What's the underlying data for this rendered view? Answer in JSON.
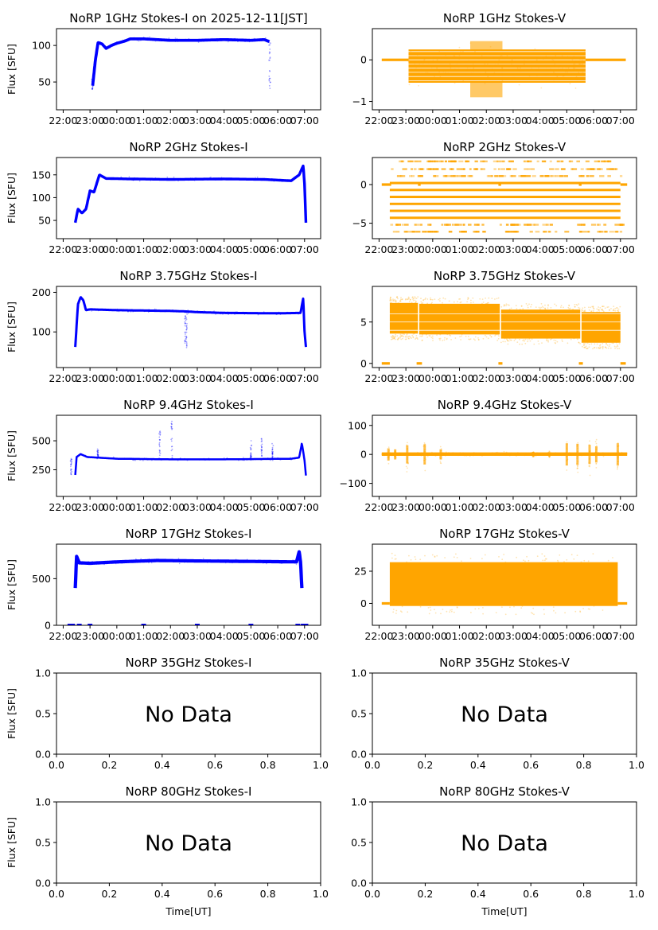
{
  "figure": {
    "xlabel_bottom": "Time[UT]",
    "colors": {
      "stokes_i": "#0000ff",
      "stokes_v": "#ffa500",
      "axes": "#000000"
    }
  },
  "chart_data": [
    {
      "type": "scatter",
      "id": "1ghz-i",
      "title": "NoRP 1GHz Stokes-I on 2025-12-11[JST]",
      "ylabel": "Flux [SFU]",
      "stokes": "I",
      "has_data": true,
      "xlim_hours": [
        21.75,
        31.6
      ],
      "ylim": [
        12,
        123
      ],
      "xticks": [
        "22:00",
        "23:00",
        "00:00",
        "01:00",
        "02:00",
        "03:00",
        "04:00",
        "05:00",
        "06:00",
        "07:00"
      ],
      "xtick_hours": [
        22,
        23,
        24,
        25,
        26,
        27,
        28,
        29,
        30,
        31
      ],
      "yticks": [
        50,
        100
      ],
      "profile": [
        [
          23.1,
          45
        ],
        [
          23.2,
          80
        ],
        [
          23.3,
          104
        ],
        [
          23.45,
          102
        ],
        [
          23.6,
          96
        ],
        [
          23.8,
          100
        ],
        [
          24.0,
          103
        ],
        [
          24.3,
          106
        ],
        [
          24.5,
          109
        ],
        [
          25.0,
          109
        ],
        [
          26.0,
          107
        ],
        [
          27.0,
          107
        ],
        [
          28.0,
          108
        ],
        [
          29.0,
          107
        ],
        [
          29.5,
          108
        ],
        [
          29.7,
          105
        ]
      ],
      "noise": 2,
      "spikes": [
        [
          23.1,
          40,
          55
        ],
        [
          29.7,
          40,
          105
        ]
      ]
    },
    {
      "type": "scatter",
      "id": "1ghz-v",
      "title": "NoRP 1GHz Stokes-V",
      "ylabel": "",
      "stokes": "V",
      "has_data": true,
      "xlim_hours": [
        21.75,
        31.6
      ],
      "ylim": [
        -1.2,
        0.75
      ],
      "xticks": [
        "22:00",
        "23:00",
        "00:00",
        "01:00",
        "02:00",
        "03:00",
        "04:00",
        "05:00",
        "06:00",
        "07:00"
      ],
      "xtick_hours": [
        22,
        23,
        24,
        25,
        26,
        27,
        28,
        29,
        30,
        31
      ],
      "yticks": [
        0,
        -1
      ],
      "band": {
        "start": 23.1,
        "end": 29.7,
        "lo": -0.55,
        "hi": 0.25,
        "bulge_center": 26.0,
        "bulge_width": 0.6,
        "bulge_lo": -0.9,
        "bulge_hi": 0.45
      },
      "flat_segments": [
        [
          22.1,
          23.1,
          0
        ],
        [
          29.7,
          31.2,
          0
        ]
      ]
    },
    {
      "type": "scatter",
      "id": "2ghz-i",
      "title": "NoRP 2GHz Stokes-I",
      "ylabel": "Flux [SFU]",
      "stokes": "I",
      "has_data": true,
      "xlim_hours": [
        21.75,
        31.6
      ],
      "ylim": [
        10,
        188
      ],
      "xticks": [
        "22:00",
        "23:00",
        "00:00",
        "01:00",
        "02:00",
        "03:00",
        "04:00",
        "05:00",
        "06:00",
        "07:00"
      ],
      "xtick_hours": [
        22,
        23,
        24,
        25,
        26,
        27,
        28,
        29,
        30,
        31
      ],
      "yticks": [
        50,
        100,
        150
      ],
      "profile": [
        [
          22.45,
          45
        ],
        [
          22.55,
          75
        ],
        [
          22.7,
          66
        ],
        [
          22.85,
          75
        ],
        [
          23.0,
          115
        ],
        [
          23.15,
          112
        ],
        [
          23.35,
          150
        ],
        [
          23.6,
          142
        ],
        [
          24.5,
          141
        ],
        [
          26.0,
          140
        ],
        [
          28.0,
          141
        ],
        [
          29.5,
          140
        ],
        [
          30.5,
          137
        ],
        [
          30.8,
          150
        ],
        [
          30.95,
          170
        ],
        [
          31.0,
          130
        ],
        [
          31.05,
          45
        ]
      ],
      "noise": 3,
      "spikes": []
    },
    {
      "type": "scatter",
      "id": "2ghz-v",
      "title": "NoRP 2GHz Stokes-V",
      "ylabel": "",
      "stokes": "V",
      "has_data": true,
      "xlim_hours": [
        21.75,
        31.6
      ],
      "ylim": [
        -7,
        3.5
      ],
      "xticks": [
        "22:00",
        "23:00",
        "00:00",
        "01:00",
        "02:00",
        "03:00",
        "04:00",
        "05:00",
        "06:00",
        "07:00"
      ],
      "xtick_hours": [
        22,
        23,
        24,
        25,
        26,
        27,
        28,
        29,
        30,
        31
      ],
      "yticks": [
        0,
        -5
      ],
      "levels": {
        "start": 22.4,
        "end": 31.0,
        "solid": [
          0.2,
          -0.7,
          -1.6,
          -2.5,
          -3.4,
          -4.3
        ],
        "sparse": [
          3.0,
          2.0,
          1.1,
          -5.2,
          -6.1
        ]
      },
      "flat_segments": [
        [
          22.1,
          22.45,
          0
        ],
        [
          31.0,
          31.25,
          0
        ],
        [
          23.45,
          23.55,
          0
        ],
        [
          26.45,
          26.55,
          0
        ],
        [
          29.45,
          29.55,
          0
        ]
      ]
    },
    {
      "type": "scatter",
      "id": "3.75ghz-i",
      "title": "NoRP 3.75GHz Stokes-I",
      "ylabel": "Flux [SFU]",
      "stokes": "I",
      "has_data": true,
      "xlim_hours": [
        21.75,
        31.6
      ],
      "ylim": [
        10,
        215
      ],
      "xticks": [
        "22:00",
        "23:00",
        "00:00",
        "01:00",
        "02:00",
        "03:00",
        "04:00",
        "05:00",
        "06:00",
        "07:00"
      ],
      "xtick_hours": [
        22,
        23,
        24,
        25,
        26,
        27,
        28,
        29,
        30,
        31
      ],
      "yticks": [
        100,
        200
      ],
      "profile": [
        [
          22.45,
          62
        ],
        [
          22.55,
          170
        ],
        [
          22.65,
          188
        ],
        [
          22.75,
          180
        ],
        [
          22.85,
          155
        ],
        [
          23.0,
          157
        ],
        [
          24.0,
          155
        ],
        [
          26.0,
          153
        ],
        [
          26.5,
          152
        ],
        [
          27.0,
          150
        ],
        [
          28.0,
          148
        ],
        [
          30.0,
          147
        ],
        [
          30.85,
          148
        ],
        [
          30.95,
          185
        ],
        [
          31.0,
          100
        ],
        [
          31.05,
          62
        ]
      ],
      "noise": 3,
      "spikes": [
        [
          26.55,
          60,
          150
        ],
        [
          26.6,
          60,
          150
        ]
      ]
    },
    {
      "type": "scatter",
      "id": "3.75ghz-v",
      "title": "NoRP 3.75GHz Stokes-V",
      "ylabel": "",
      "stokes": "V",
      "has_data": true,
      "xlim_hours": [
        21.75,
        31.6
      ],
      "ylim": [
        -0.5,
        9.3
      ],
      "xticks": [
        "22:00",
        "23:00",
        "00:00",
        "01:00",
        "02:00",
        "03:00",
        "04:00",
        "05:00",
        "06:00",
        "07:00"
      ],
      "xtick_hours": [
        22,
        23,
        24,
        25,
        26,
        27,
        28,
        29,
        30,
        31
      ],
      "yticks": [
        0,
        5
      ],
      "blocks": [
        [
          22.4,
          23.45,
          3.6,
          7.3
        ],
        [
          23.5,
          26.5,
          3.5,
          7.2
        ],
        [
          26.55,
          29.5,
          3.0,
          6.5
        ],
        [
          29.55,
          31.0,
          2.5,
          6.2
        ]
      ],
      "flat_segments": [
        [
          22.1,
          22.4,
          0
        ],
        [
          23.4,
          23.6,
          0
        ],
        [
          26.45,
          26.6,
          0
        ],
        [
          29.45,
          29.6,
          0
        ],
        [
          31.0,
          31.2,
          0
        ]
      ]
    },
    {
      "type": "scatter",
      "id": "9.4ghz-i",
      "title": "NoRP 9.4GHz Stokes-I",
      "ylabel": "Flux [SFU]",
      "stokes": "I",
      "has_data": true,
      "xlim_hours": [
        21.75,
        31.6
      ],
      "ylim": [
        20,
        720
      ],
      "xticks": [
        "22:00",
        "23:00",
        "00:00",
        "01:00",
        "02:00",
        "03:00",
        "04:00",
        "05:00",
        "06:00",
        "07:00"
      ],
      "xtick_hours": [
        22,
        23,
        24,
        25,
        26,
        27,
        28,
        29,
        30,
        31
      ],
      "yticks": [
        250,
        500
      ],
      "profile": [
        [
          22.45,
          205
        ],
        [
          22.5,
          360
        ],
        [
          22.65,
          385
        ],
        [
          22.9,
          360
        ],
        [
          24.0,
          345
        ],
        [
          26.0,
          340
        ],
        [
          28.0,
          340
        ],
        [
          30.5,
          345
        ],
        [
          30.8,
          355
        ],
        [
          30.9,
          480
        ],
        [
          31.0,
          330
        ],
        [
          31.05,
          200
        ]
      ],
      "noise": 8,
      "spikes": [
        [
          22.3,
          200,
          350
        ],
        [
          23.3,
          350,
          430
        ],
        [
          25.6,
          330,
          620
        ],
        [
          26.05,
          330,
          670
        ],
        [
          29.0,
          330,
          520
        ],
        [
          29.4,
          330,
          530
        ],
        [
          29.8,
          330,
          480
        ]
      ]
    },
    {
      "type": "scatter",
      "id": "9.4ghz-v",
      "title": "NoRP 9.4GHz Stokes-V",
      "ylabel": "",
      "stokes": "V",
      "has_data": true,
      "xlim_hours": [
        21.75,
        31.6
      ],
      "ylim": [
        -145,
        135
      ],
      "xticks": [
        "22:00",
        "23:00",
        "00:00",
        "01:00",
        "02:00",
        "03:00",
        "04:00",
        "05:00",
        "06:00",
        "07:00"
      ],
      "xtick_hours": [
        22,
        23,
        24,
        25,
        26,
        27,
        28,
        29,
        30,
        31
      ],
      "yticks": [
        100,
        0,
        -100
      ],
      "band": {
        "start": 22.1,
        "end": 31.25,
        "lo": -5,
        "hi": 7
      },
      "bursts": [
        [
          22.35,
          60
        ],
        [
          22.6,
          50
        ],
        [
          23.05,
          90
        ],
        [
          23.7,
          100
        ],
        [
          24.3,
          50
        ],
        [
          27.75,
          25
        ],
        [
          28.35,
          20
        ],
        [
          29.0,
          110
        ],
        [
          29.4,
          105
        ],
        [
          29.85,
          95
        ],
        [
          30.1,
          80
        ],
        [
          30.9,
          110
        ]
      ]
    },
    {
      "type": "scatter",
      "id": "17ghz-i",
      "title": "NoRP 17GHz Stokes-I",
      "ylabel": "Flux [SFU]",
      "stokes": "I",
      "has_data": true,
      "xlim_hours": [
        21.75,
        31.6
      ],
      "ylim": [
        0,
        870
      ],
      "xticks": [
        "22:00",
        "23:00",
        "00:00",
        "01:00",
        "02:00",
        "03:00",
        "04:00",
        "05:00",
        "06:00",
        "07:00"
      ],
      "xtick_hours": [
        22,
        23,
        24,
        25,
        26,
        27,
        28,
        29,
        30,
        31
      ],
      "yticks": [
        0,
        500
      ],
      "profile": [
        [
          22.45,
          400
        ],
        [
          22.5,
          740
        ],
        [
          22.6,
          670
        ],
        [
          23.0,
          665
        ],
        [
          24.0,
          680
        ],
        [
          25.5,
          695
        ],
        [
          27.0,
          690
        ],
        [
          29.0,
          685
        ],
        [
          30.7,
          680
        ],
        [
          30.8,
          790
        ],
        [
          30.85,
          680
        ],
        [
          30.9,
          400
        ]
      ],
      "noise": 18,
      "zero_marks": [
        22.25,
        22.35,
        22.6,
        23.0,
        25.0,
        27.0,
        29.0,
        30.75,
        30.95,
        31.05
      ]
    },
    {
      "type": "scatter",
      "id": "17ghz-v",
      "title": "NoRP 17GHz Stokes-V",
      "ylabel": "",
      "stokes": "V",
      "has_data": true,
      "xlim_hours": [
        21.75,
        31.6
      ],
      "ylim": [
        -17,
        46
      ],
      "xticks": [
        "22:00",
        "23:00",
        "00:00",
        "01:00",
        "02:00",
        "03:00",
        "04:00",
        "05:00",
        "06:00",
        "07:00"
      ],
      "xtick_hours": [
        22,
        23,
        24,
        25,
        26,
        27,
        28,
        29,
        30,
        31
      ],
      "yticks": [
        25,
        0
      ],
      "blocks": [
        [
          22.4,
          30.9,
          -2,
          32
        ]
      ],
      "flat_segments": [
        [
          22.1,
          22.4,
          0
        ],
        [
          30.9,
          31.25,
          0
        ]
      ]
    },
    {
      "type": "scatter",
      "id": "35ghz-i",
      "title": "NoRP 35GHz Stokes-I",
      "ylabel": "Flux [SFU]",
      "stokes": "I",
      "has_data": false,
      "message": "No Data",
      "xlim": [
        0,
        1
      ],
      "ylim": [
        0,
        1
      ],
      "xticks": [
        "0.0",
        "0.2",
        "0.4",
        "0.6",
        "0.8",
        "1.0"
      ],
      "yticks": [
        "0.0",
        "0.5",
        "1.0"
      ]
    },
    {
      "type": "scatter",
      "id": "35ghz-v",
      "title": "NoRP 35GHz Stokes-V",
      "ylabel": "",
      "stokes": "V",
      "has_data": false,
      "message": "No Data",
      "xlim": [
        0,
        1
      ],
      "ylim": [
        0,
        1
      ],
      "xticks": [
        "0.0",
        "0.2",
        "0.4",
        "0.6",
        "0.8",
        "1.0"
      ],
      "yticks": [
        "0.0",
        "0.5",
        "1.0"
      ]
    },
    {
      "type": "scatter",
      "id": "80ghz-i",
      "title": "NoRP 80GHz Stokes-I",
      "ylabel": "Flux [SFU]",
      "xlabel": "Time[UT]",
      "stokes": "I",
      "has_data": false,
      "message": "No Data",
      "xlim": [
        0,
        1
      ],
      "ylim": [
        0,
        1
      ],
      "xticks": [
        "0.0",
        "0.2",
        "0.4",
        "0.6",
        "0.8",
        "1.0"
      ],
      "yticks": [
        "0.0",
        "0.5",
        "1.0"
      ]
    },
    {
      "type": "scatter",
      "id": "80ghz-v",
      "title": "NoRP 80GHz Stokes-V",
      "ylabel": "",
      "xlabel": "Time[UT]",
      "stokes": "V",
      "has_data": false,
      "message": "No Data",
      "xlim": [
        0,
        1
      ],
      "ylim": [
        0,
        1
      ],
      "xticks": [
        "0.0",
        "0.2",
        "0.4",
        "0.6",
        "0.8",
        "1.0"
      ],
      "yticks": [
        "0.0",
        "0.5",
        "1.0"
      ]
    }
  ]
}
